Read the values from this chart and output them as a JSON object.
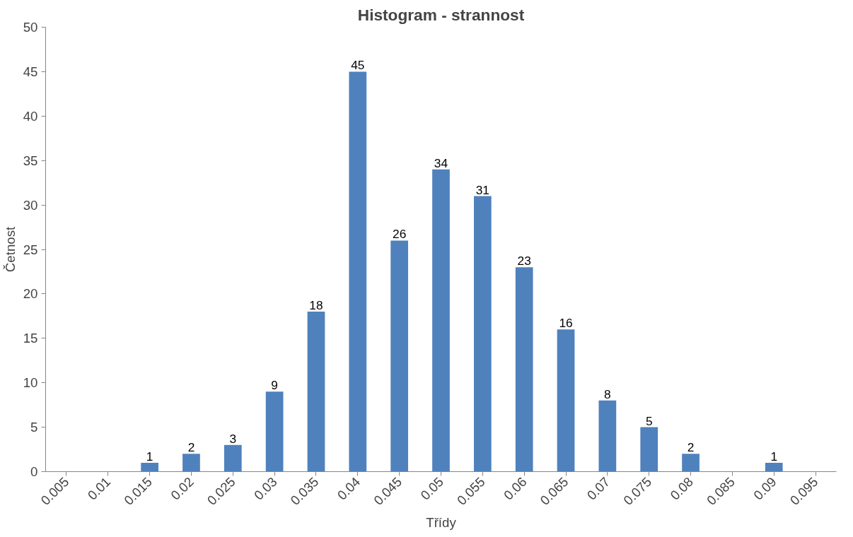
{
  "chart_data": {
    "type": "bar",
    "title": "Histogram - strannost",
    "xlabel": "Třídy",
    "ylabel": "Četnost",
    "categories": [
      "0.005",
      "0.01",
      "0.015",
      "0.02",
      "0.025",
      "0.03",
      "0.035",
      "0.04",
      "0.045",
      "0.05",
      "0.055",
      "0.06",
      "0.065",
      "0.07",
      "0.075",
      "0.08",
      "0.085",
      "0.09",
      "0.095"
    ],
    "values": [
      0,
      0,
      1,
      2,
      3,
      9,
      18,
      45,
      26,
      34,
      31,
      23,
      16,
      8,
      5,
      2,
      0,
      1,
      0
    ],
    "value_labels": [
      null,
      null,
      "1",
      "2",
      "3",
      "9",
      "18",
      "45",
      "26",
      "34",
      "31",
      "23",
      "16",
      "8",
      "5",
      "2",
      null,
      "1",
      null
    ],
    "color": "#4f81bd",
    "ylim": [
      0,
      50
    ],
    "yticks": [
      0,
      5,
      10,
      15,
      20,
      25,
      30,
      35,
      40,
      45,
      50
    ],
    "grid": false
  }
}
